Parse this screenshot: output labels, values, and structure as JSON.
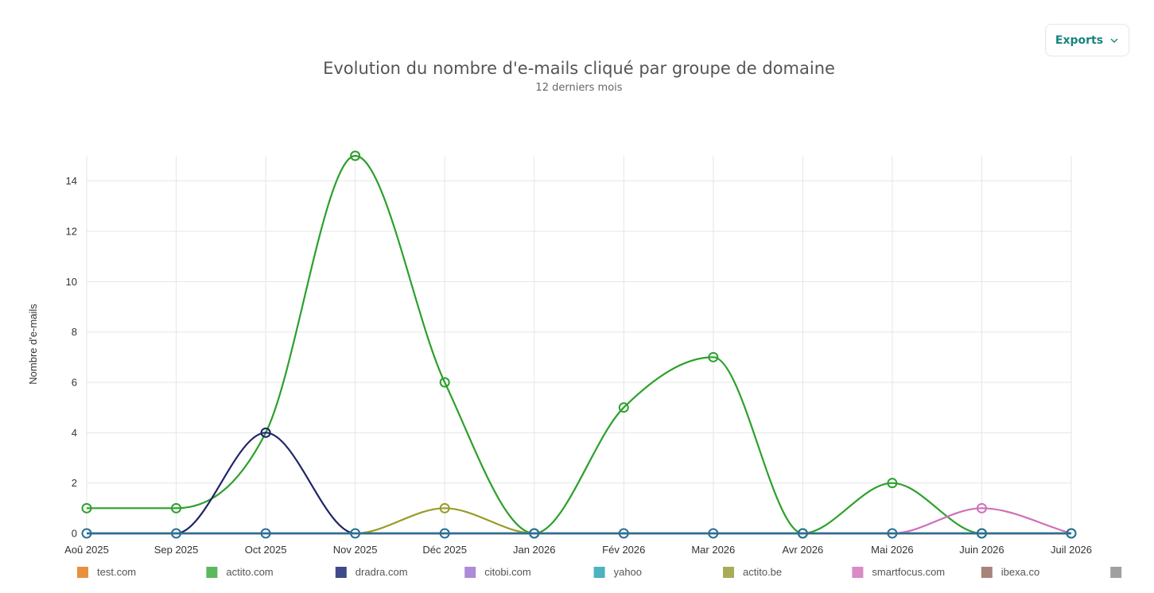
{
  "toolbar": {
    "exports_label": "Exports",
    "exports_icon": "chevron-down-icon"
  },
  "chart_data": {
    "type": "line",
    "title": "Evolution du nombre d'e-mails cliqué par groupe de domaine",
    "subtitle": "12 derniers mois",
    "xlabel": "",
    "ylabel": "Nombre d'e-mails",
    "ylim": [
      0,
      15
    ],
    "yticks": [
      0,
      2,
      4,
      6,
      8,
      10,
      12,
      14
    ],
    "grid": true,
    "legend_position": "bottom",
    "categories": [
      "Aoû 2025",
      "Sep 2025",
      "Oct 2025",
      "Nov 2025",
      "Déc 2025",
      "Jan 2026",
      "Fév 2026",
      "Mar 2026",
      "Avr 2026",
      "Mai 2026",
      "Juin 2026",
      "Juil 2026"
    ],
    "series": [
      {
        "name": "test.com",
        "color": "#e8913f",
        "values": [
          0,
          0,
          0,
          0,
          0,
          0,
          0,
          0,
          0,
          0,
          0,
          0
        ],
        "legend_color": "#e8913f"
      },
      {
        "name": "actito.com",
        "color": "#2ca02c",
        "values": [
          1,
          1,
          4,
          15,
          6,
          0,
          5,
          7,
          0,
          2,
          0,
          0
        ],
        "legend_color": "#5cb85c"
      },
      {
        "name": "dradra.com",
        "color": "#1f2468",
        "values": [
          0,
          0,
          4,
          0,
          0,
          0,
          0,
          0,
          0,
          0,
          0,
          0
        ],
        "legend_color": "#3f4a8a"
      },
      {
        "name": "citobi.com",
        "color": "#9467bd",
        "values": [
          0,
          0,
          0,
          0,
          0,
          0,
          0,
          0,
          0,
          0,
          0,
          0
        ],
        "legend_color": "#ad8bd6"
      },
      {
        "name": "yahoo",
        "color": "#17becf",
        "values": [
          0,
          0,
          0,
          0,
          0,
          0,
          0,
          0,
          0,
          0,
          0,
          0
        ],
        "legend_color": "#4cb3c0"
      },
      {
        "name": "actito.be",
        "color": "#9a9a2a",
        "values": [
          0,
          0,
          0,
          0,
          1,
          0,
          0,
          0,
          0,
          0,
          0,
          0
        ],
        "legend_color": "#a9ac57"
      },
      {
        "name": "smartfocus.com",
        "color": "#cf6fb8",
        "values": [
          0,
          0,
          0,
          0,
          0,
          0,
          0,
          0,
          0,
          0,
          1,
          0
        ],
        "legend_color": "#d98bc6"
      },
      {
        "name": "ibexa.co",
        "color": "#8c564b",
        "values": [
          0,
          0,
          0,
          0,
          0,
          0,
          0,
          0,
          0,
          0,
          0,
          0
        ],
        "legend_color": "#a8837b"
      },
      {
        "name": "",
        "color": "#2a6f97",
        "values": [
          0,
          0,
          0,
          0,
          0,
          0,
          0,
          0,
          0,
          0,
          0,
          0
        ],
        "legend_color": "#a0a0a0"
      }
    ]
  }
}
